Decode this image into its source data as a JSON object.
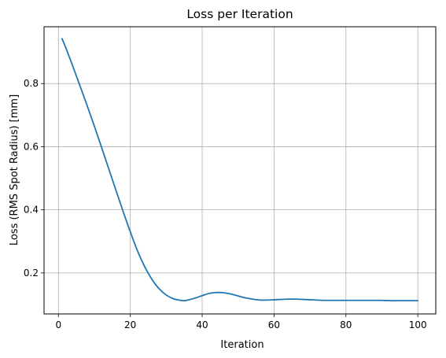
{
  "chart_data": {
    "type": "line",
    "title": "Loss per Iteration",
    "xlabel": "Iteration",
    "ylabel": "Loss (RMS Spot Radius) [mm]",
    "xlim": [
      -4,
      105
    ],
    "ylim": [
      0.07,
      0.98
    ],
    "x_ticks": [
      0,
      20,
      40,
      60,
      80,
      100
    ],
    "y_ticks": [
      0.2,
      0.4,
      0.6,
      0.8
    ],
    "x_tick_labels": [
      "0",
      "20",
      "40",
      "60",
      "80",
      "100"
    ],
    "y_tick_labels": [
      "0.2",
      "0.4",
      "0.6",
      "0.8"
    ],
    "grid": true,
    "line_color": "#1f77b4",
    "grid_color": "#b0b0b0",
    "series": [
      {
        "x": [
          1,
          2,
          4,
          6,
          8,
          10,
          12,
          14,
          16,
          18,
          20,
          22,
          24,
          26,
          28,
          30,
          32,
          34,
          35,
          36,
          38,
          40,
          42,
          44,
          46,
          48,
          50,
          52,
          54,
          56,
          58,
          60,
          62,
          64,
          66,
          68,
          70,
          72,
          74,
          76,
          78,
          80,
          82,
          84,
          86,
          88,
          90,
          92,
          94,
          96,
          98,
          100
        ],
        "y": [
          0.942,
          0.915,
          0.855,
          0.793,
          0.73,
          0.665,
          0.598,
          0.53,
          0.462,
          0.395,
          0.33,
          0.27,
          0.22,
          0.18,
          0.15,
          0.13,
          0.118,
          0.113,
          0.112,
          0.114,
          0.12,
          0.128,
          0.135,
          0.138,
          0.137,
          0.133,
          0.127,
          0.121,
          0.117,
          0.114,
          0.114,
          0.115,
          0.116,
          0.117,
          0.117,
          0.116,
          0.115,
          0.114,
          0.113,
          0.113,
          0.113,
          0.113,
          0.113,
          0.113,
          0.113,
          0.113,
          0.113,
          0.112,
          0.112,
          0.112,
          0.112,
          0.112
        ]
      }
    ]
  }
}
